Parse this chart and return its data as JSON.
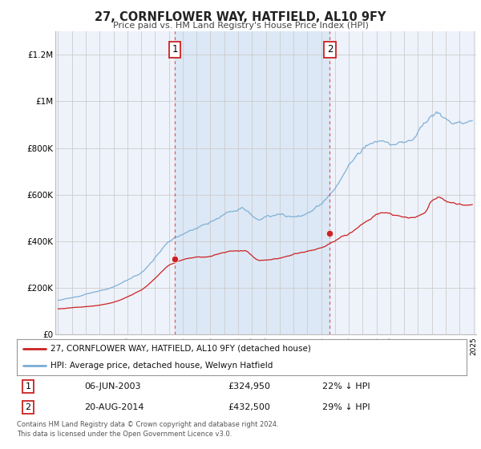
{
  "title": "27, CORNFLOWER WAY, HATFIELD, AL10 9FY",
  "subtitle": "Price paid vs. HM Land Registry's House Price Index (HPI)",
  "background_color": "#ffffff",
  "plot_bg_color": "#eef2fa",
  "x_start_year": 1995,
  "x_end_year": 2025,
  "ylim": [
    0,
    1300000
  ],
  "yticks": [
    0,
    200000,
    400000,
    600000,
    800000,
    1000000,
    1200000
  ],
  "ytick_labels": [
    "£0",
    "£200K",
    "£400K",
    "£600K",
    "£800K",
    "£1M",
    "£1.2M"
  ],
  "red_line_label": "27, CORNFLOWER WAY, HATFIELD, AL10 9FY (detached house)",
  "blue_line_label": "HPI: Average price, detached house, Welwyn Hatfield",
  "sale1_date": "06-JUN-2003",
  "sale1_year": 2003.44,
  "sale1_price": 324950,
  "sale1_label": "1",
  "sale1_hpi_pct": "22%",
  "sale2_date": "20-AUG-2014",
  "sale2_year": 2014.63,
  "sale2_price": 432500,
  "sale2_label": "2",
  "sale2_hpi_pct": "29%",
  "red_color": "#cc2222",
  "blue_color": "#7aadd4",
  "marker_color": "#cc2222",
  "vline_color": "#dd4444",
  "shaded_color": "#dce8f5",
  "grid_color": "#cccccc",
  "footer_text": "Contains HM Land Registry data © Crown copyright and database right 2024.\nThis data is licensed under the Open Government Licence v3.0."
}
